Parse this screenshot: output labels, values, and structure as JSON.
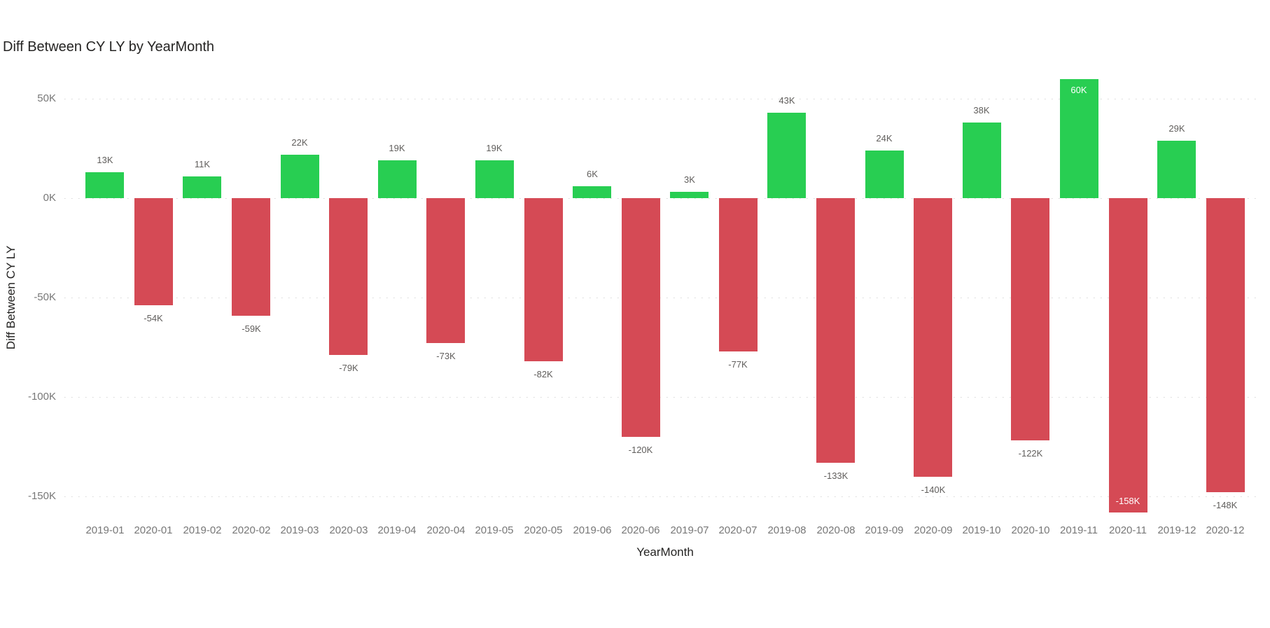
{
  "page": {
    "background": "#FFFFFF"
  },
  "chart_data": {
    "type": "bar",
    "title": "Diff Between CY LY by YearMonth",
    "xlabel": "YearMonth",
    "ylabel": "Diff Between CY LY",
    "unit": "thousands (K)",
    "categories": [
      "2019-01",
      "2020-01",
      "2019-02",
      "2020-02",
      "2019-03",
      "2020-03",
      "2019-04",
      "2020-04",
      "2019-05",
      "2020-05",
      "2019-06",
      "2020-06",
      "2019-07",
      "2020-07",
      "2019-08",
      "2020-08",
      "2019-09",
      "2020-09",
      "2019-10",
      "2020-10",
      "2019-11",
      "2020-11",
      "2019-12",
      "2020-12"
    ],
    "values": [
      13,
      -54,
      11,
      -59,
      22,
      -79,
      19,
      -73,
      19,
      -82,
      6,
      -120,
      3,
      -77,
      43,
      -133,
      24,
      -140,
      38,
      -122,
      60,
      -158,
      29,
      -148
    ],
    "data_labels": [
      "13K",
      "-54K",
      "11K",
      "-59K",
      "22K",
      "-79K",
      "19K",
      "-73K",
      "19K",
      "-82K",
      "6K",
      "-120K",
      "3K",
      "-77K",
      "43K",
      "-133K",
      "24K",
      "-140K",
      "38K",
      "-122K",
      "60K",
      "-158K",
      "29K",
      "-148K"
    ],
    "yticks": [
      {
        "value": 50,
        "label": "50K"
      },
      {
        "value": 0,
        "label": "0K"
      },
      {
        "value": -50,
        "label": "-50K"
      },
      {
        "value": -100,
        "label": "-100K"
      },
      {
        "value": -150,
        "label": "-150K"
      }
    ],
    "ylim": [
      -162,
      62
    ],
    "grid": "dotted horizontal gridlines",
    "legend": "none",
    "colors": {
      "positive": "#28CE52",
      "negative": "#D54A55",
      "label_outside": "#605E5C",
      "label_inside": "#FFFFFF",
      "axis_text": "#777777",
      "axis_title_text": "#252423",
      "title_text": "#252423",
      "gridline": "#D6D6D6"
    }
  }
}
